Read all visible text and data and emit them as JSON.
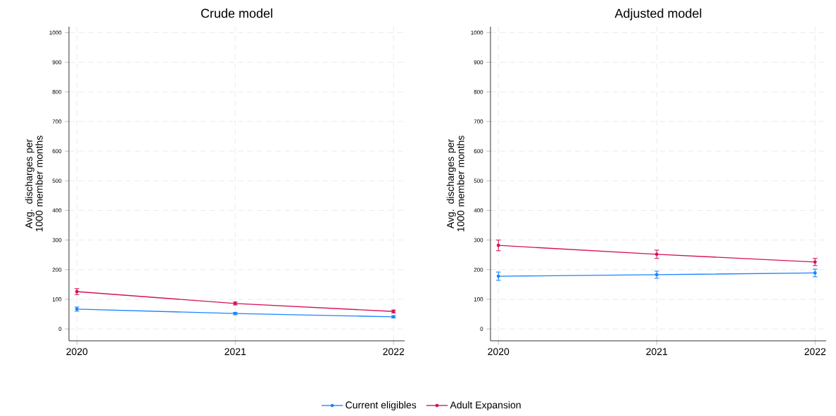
{
  "chart_data": [
    {
      "type": "line",
      "title": "Crude model",
      "ylabel": "Avg. discharges per 1000 member months",
      "x": [
        2020,
        2021,
        2022
      ],
      "xlim": [
        2019.95,
        2022.07
      ],
      "xticks": [
        2020,
        2021,
        2022
      ],
      "ylim": [
        -40,
        1020
      ],
      "yticks": [
        0,
        100,
        200,
        300,
        400,
        500,
        600,
        700,
        800,
        900,
        1000
      ],
      "grid": true,
      "legend": "bottom",
      "marker": "circle",
      "line_style": "solid",
      "series": [
        {
          "name": "Current eligibles",
          "color": "#1a85ff",
          "values": [
            67,
            52,
            41
          ],
          "errors": [
            7,
            4,
            4
          ]
        },
        {
          "name": "Adult Expansion",
          "color": "#d41159",
          "values": [
            126,
            86,
            59
          ],
          "errors": [
            10,
            5,
            5
          ]
        }
      ]
    },
    {
      "type": "line",
      "title": "Adjusted model",
      "ylabel": "Avg. discharges per 1000 member months",
      "x": [
        2020,
        2021,
        2022
      ],
      "xlim": [
        2019.95,
        2022.07
      ],
      "xticks": [
        2020,
        2021,
        2022
      ],
      "ylim": [
        -40,
        1020
      ],
      "yticks": [
        0,
        100,
        200,
        300,
        400,
        500,
        600,
        700,
        800,
        900,
        1000
      ],
      "grid": true,
      "marker": "circle",
      "line_style": "solid",
      "series": [
        {
          "color": "#1a85ff",
          "values": [
            178,
            183,
            189
          ],
          "errors": [
            14,
            12,
            13
          ]
        },
        {
          "color": "#d41159",
          "values": [
            282,
            252,
            226
          ],
          "errors": [
            18,
            14,
            12
          ]
        }
      ]
    }
  ]
}
